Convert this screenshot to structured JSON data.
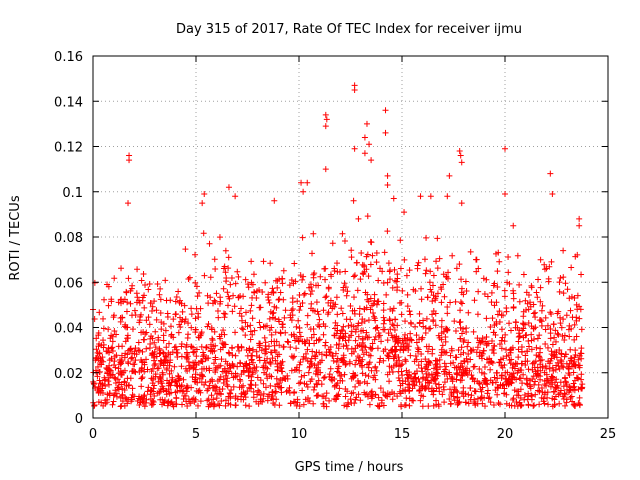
{
  "chart_data": {
    "type": "scatter",
    "title": "Day 315 of 2017, Rate Of TEC Index for receiver ijmu",
    "xlabel": "GPS time / hours",
    "ylabel": "ROTI / TECUs",
    "xlim": [
      0,
      25
    ],
    "ylim": [
      0,
      0.16
    ],
    "x_ticks": [
      0,
      5,
      10,
      15,
      20,
      25
    ],
    "x_tick_labels": [
      "0",
      "5",
      "10",
      "15",
      "20",
      "25"
    ],
    "y_ticks": [
      0,
      0.02,
      0.04,
      0.06,
      0.08,
      0.1,
      0.12,
      0.14,
      0.16
    ],
    "y_tick_labels": [
      "0",
      "0.02",
      "0.04",
      "0.06",
      "0.08",
      "0.1",
      "0.12",
      "0.14",
      "0.16"
    ],
    "grid": true,
    "marker": "plus",
    "color": "#ff0000",
    "series": [
      {
        "name": "ROTI",
        "outliers": [
          {
            "x": 1.75,
            "y": 0.116
          },
          {
            "x": 1.75,
            "y": 0.114
          },
          {
            "x": 1.7,
            "y": 0.095
          },
          {
            "x": 5.4,
            "y": 0.099
          },
          {
            "x": 5.3,
            "y": 0.095
          },
          {
            "x": 6.6,
            "y": 0.102
          },
          {
            "x": 6.9,
            "y": 0.098
          },
          {
            "x": 8.8,
            "y": 0.096
          },
          {
            "x": 10.1,
            "y": 0.104
          },
          {
            "x": 10.4,
            "y": 0.104
          },
          {
            "x": 10.2,
            "y": 0.1
          },
          {
            "x": 11.3,
            "y": 0.134
          },
          {
            "x": 11.35,
            "y": 0.132
          },
          {
            "x": 11.3,
            "y": 0.129
          },
          {
            "x": 11.3,
            "y": 0.11
          },
          {
            "x": 12.7,
            "y": 0.147
          },
          {
            "x": 12.7,
            "y": 0.145
          },
          {
            "x": 12.7,
            "y": 0.119
          },
          {
            "x": 12.65,
            "y": 0.096
          },
          {
            "x": 13.3,
            "y": 0.13
          },
          {
            "x": 13.2,
            "y": 0.124
          },
          {
            "x": 13.4,
            "y": 0.121
          },
          {
            "x": 13.2,
            "y": 0.117
          },
          {
            "x": 13.5,
            "y": 0.114
          },
          {
            "x": 14.2,
            "y": 0.136
          },
          {
            "x": 14.2,
            "y": 0.126
          },
          {
            "x": 14.3,
            "y": 0.107
          },
          {
            "x": 14.3,
            "y": 0.103
          },
          {
            "x": 14.6,
            "y": 0.097
          },
          {
            "x": 15.1,
            "y": 0.091
          },
          {
            "x": 15.9,
            "y": 0.098
          },
          {
            "x": 16.4,
            "y": 0.098
          },
          {
            "x": 17.3,
            "y": 0.107
          },
          {
            "x": 17.8,
            "y": 0.118
          },
          {
            "x": 17.85,
            "y": 0.116
          },
          {
            "x": 17.9,
            "y": 0.113
          },
          {
            "x": 17.2,
            "y": 0.098
          },
          {
            "x": 17.9,
            "y": 0.095
          },
          {
            "x": 20.0,
            "y": 0.119
          },
          {
            "x": 20.0,
            "y": 0.099
          },
          {
            "x": 20.4,
            "y": 0.085
          },
          {
            "x": 22.2,
            "y": 0.108
          },
          {
            "x": 22.3,
            "y": 0.099
          },
          {
            "x": 23.6,
            "y": 0.088
          },
          {
            "x": 23.6,
            "y": 0.085
          }
        ],
        "hourly_envelope": {
          "hours": [
            0,
            1,
            2,
            3,
            4,
            5,
            6,
            7,
            8,
            9,
            10,
            11,
            12,
            13,
            14,
            15,
            16,
            17,
            18,
            19,
            20,
            21,
            22,
            23
          ],
          "typical_max": [
            0.06,
            0.065,
            0.07,
            0.06,
            0.07,
            0.08,
            0.085,
            0.08,
            0.07,
            0.075,
            0.085,
            0.08,
            0.085,
            0.09,
            0.09,
            0.08,
            0.085,
            0.09,
            0.08,
            0.07,
            0.075,
            0.07,
            0.07,
            0.075
          ],
          "dense_band_max": [
            0.025,
            0.03,
            0.03,
            0.028,
            0.03,
            0.032,
            0.03,
            0.03,
            0.03,
            0.03,
            0.035,
            0.035,
            0.035,
            0.04,
            0.04,
            0.035,
            0.035,
            0.035,
            0.03,
            0.03,
            0.03,
            0.03,
            0.03,
            0.03
          ],
          "baseline_min": 0.005
        },
        "x_range": [
          0,
          23.75
        ]
      }
    ]
  }
}
